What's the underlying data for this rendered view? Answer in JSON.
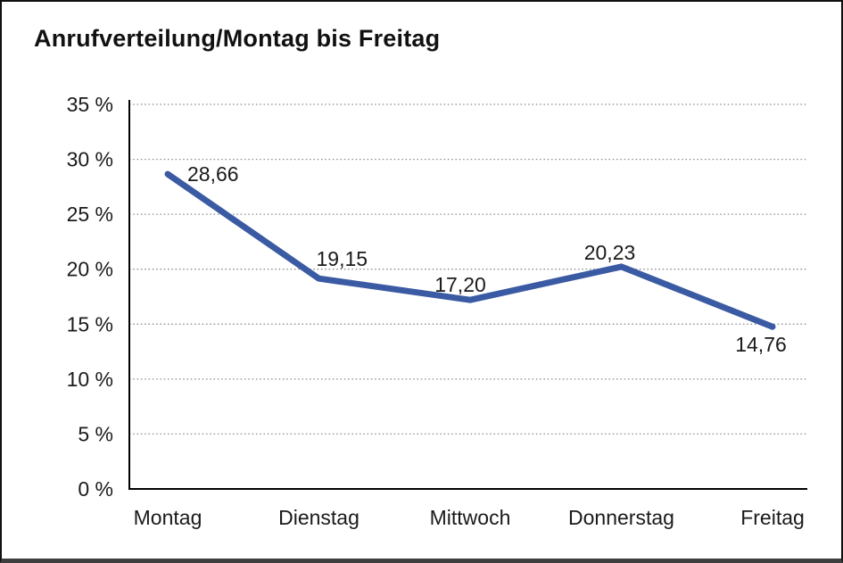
{
  "chart_data": {
    "type": "line",
    "title": "Anrufverteilung/Montag bis Freitag",
    "categories": [
      "Montag",
      "Dienstag",
      "Mittwoch",
      "Donnerstag",
      "Freitag"
    ],
    "values": [
      28.66,
      19.15,
      17.2,
      20.23,
      14.76
    ],
    "data_labels": [
      "28,66",
      "19,15",
      "17,20",
      "20,23",
      "14,76"
    ],
    "y_tick_labels": [
      "0 %",
      "5 %",
      "10 %",
      "15 %",
      "20 %",
      "25 %",
      "30 %",
      "35 %"
    ],
    "y_tick_step": 5,
    "ylim": [
      0,
      35
    ],
    "xlabel": "",
    "ylabel": "",
    "grid": "horizontal-dotted",
    "legend": "none",
    "line_color": "#3A5AA3",
    "colors": {
      "axis": "#000000",
      "text": "#1a1a1a",
      "grid": "#8a8a8a",
      "background": "#ffffff",
      "frame": "#101010"
    }
  }
}
